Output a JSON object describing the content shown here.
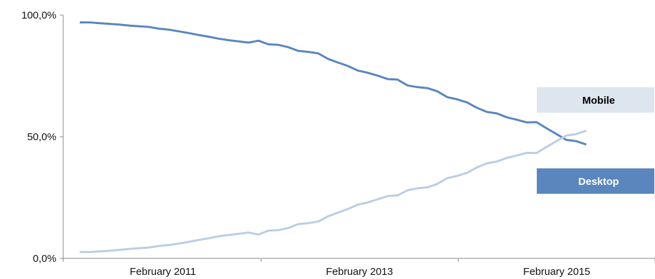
{
  "chart_data": {
    "type": "line",
    "y_ticks": [
      "0,0%",
      "50,0%",
      "100,0%"
    ],
    "ylim": [
      0,
      100
    ],
    "x_ticks": [
      "February 2011",
      "February 2013",
      "February 2015"
    ],
    "grid": false,
    "legend_position": "right",
    "series": [
      {
        "name": "Desktop",
        "color": "#5a86bd",
        "values": [
          97.0,
          97.0,
          96.7,
          96.4,
          96.1,
          95.7,
          95.4,
          95.1,
          94.4,
          94.0,
          93.3,
          92.6,
          91.8,
          91.1,
          90.3,
          89.7,
          89.2,
          88.7,
          89.5,
          88.0,
          87.8,
          86.8,
          85.3,
          84.9,
          84.3,
          82.0,
          80.5,
          79.1,
          77.2,
          76.3,
          75.1,
          73.7,
          73.5,
          71.1,
          70.4,
          70.0,
          68.7,
          66.3,
          65.4,
          64.1,
          61.9,
          60.2,
          59.6,
          58.0,
          57.0,
          55.9,
          56.0,
          53.5,
          51.1,
          48.7,
          48.2,
          46.8
        ]
      },
      {
        "name": "Mobile",
        "color": "#bccde3",
        "values": [
          2.6,
          2.6,
          2.9,
          3.1,
          3.5,
          3.9,
          4.2,
          4.5,
          5.1,
          5.5,
          6.1,
          6.8,
          7.6,
          8.3,
          9.1,
          9.6,
          10.1,
          10.6,
          9.8,
          11.4,
          11.6,
          12.5,
          14.1,
          14.5,
          15.1,
          17.3,
          18.8,
          20.3,
          22.1,
          23.0,
          24.3,
          25.6,
          25.9,
          28.0,
          28.8,
          29.2,
          30.6,
          33.0,
          33.9,
          35.2,
          37.4,
          39.1,
          39.8,
          41.3,
          42.3,
          43.4,
          43.3,
          45.8,
          48.2,
          50.5,
          51.1,
          52.5
        ]
      }
    ],
    "legend": {
      "mobile_label": "Mobile",
      "desktop_label": "Desktop",
      "mobile_box_color": "#dde5ef",
      "desktop_box_color": "#5a86bd"
    }
  }
}
